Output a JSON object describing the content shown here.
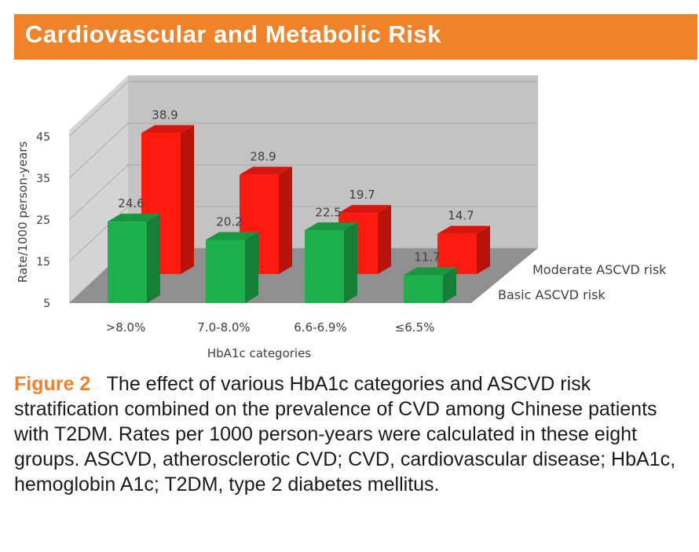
{
  "header": {
    "title": "Cardiovascular and Metabolic Risk"
  },
  "caption": {
    "figure_label": "Figure 2",
    "text": "The effect of various HbA1c categories and ASCVD risk stratification combined on the prevalence of CVD among Chinese patients with T2DM. Rates per 1000 person-years were calculated in these eight groups. ASCVD, atherosclerotic CVD; CVD, cardiovascular disease; HbA1c, hemoglobin A1c; T2DM, type 2 diabetes mellitus."
  },
  "chart_data": {
    "type": "bar",
    "title": "",
    "xlabel": "HbA1c categories",
    "ylabel": "Rate/1000 person-years",
    "categories": [
      ">8.0%",
      "7.0-8.0%",
      "6.6-6.9%",
      "≤6.5%"
    ],
    "yticks": [
      5,
      15,
      25,
      35,
      45
    ],
    "ylim": [
      5,
      45
    ],
    "series": [
      {
        "name": "Basic ASCVD risk",
        "values": [
          24.6,
          20.2,
          22.5,
          11.7
        ],
        "value_labels": [
          "24.6",
          "20.2",
          "22.5",
          "11.7"
        ],
        "color": "#1DB04B"
      },
      {
        "name": "Moderate ASCVD risk",
        "values": [
          38.9,
          28.9,
          19.7,
          14.7
        ],
        "value_labels": [
          "38.9",
          "28.9",
          "19.7",
          "14.7"
        ],
        "color": "#FF1A0F"
      }
    ]
  }
}
